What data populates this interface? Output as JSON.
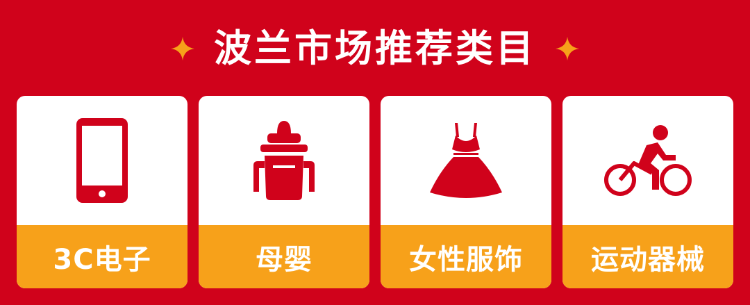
{
  "header": {
    "title": "波兰市场推荐类目",
    "left_decoration": "sparkle-icon",
    "right_decoration": "sparkle-icon"
  },
  "categories": [
    {
      "label": "3C电子",
      "icon": "smartphone-icon"
    },
    {
      "label": "母婴",
      "icon": "baby-bottle-icon"
    },
    {
      "label": "女性服饰",
      "icon": "dress-icon"
    },
    {
      "label": "运动器械",
      "icon": "cyclist-icon"
    }
  ],
  "colors": {
    "background": "#d0021b",
    "card": "#ffffff",
    "label_bar": "#f7a11a",
    "icon": "#d0021b",
    "sparkle": "#f7a11a"
  }
}
